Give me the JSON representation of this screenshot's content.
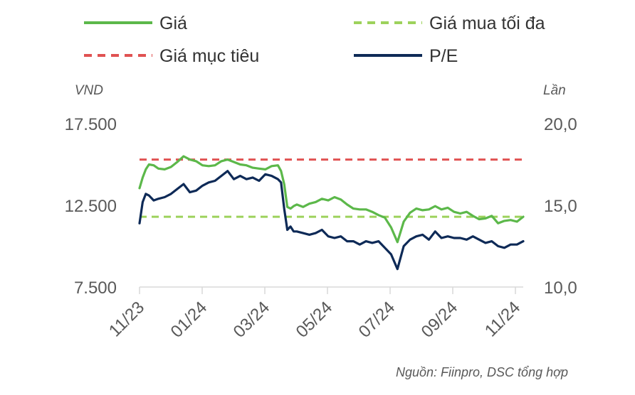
{
  "chart_data": {
    "type": "line",
    "legend": {
      "placement": "top",
      "items": [
        {
          "name": "Giá",
          "color": "#5cb84a",
          "dash": "solid"
        },
        {
          "name": "Giá mua tối đa",
          "color": "#9dd25c",
          "dash": "dashed"
        },
        {
          "name": "Giá mục tiêu",
          "color": "#e05252",
          "dash": "dashed"
        },
        {
          "name": "P/E",
          "color": "#0e2a57",
          "dash": "solid"
        }
      ]
    },
    "left_axis": {
      "unit": "VND",
      "ticks": [
        "17.500",
        "12.500",
        "7.500"
      ],
      "tick_values": [
        17500,
        12500,
        7500
      ],
      "range": [
        7500,
        17500
      ]
    },
    "right_axis": {
      "unit": "Lần",
      "ticks": [
        "20,0",
        "15,0",
        "10,0"
      ],
      "tick_values": [
        20,
        15,
        10
      ],
      "range": [
        10,
        20
      ]
    },
    "x_axis": {
      "ticks": [
        "11/23",
        "01/24",
        "03/24",
        "05/24",
        "07/24",
        "09/24",
        "11/24"
      ],
      "range_months": [
        0,
        12.2
      ]
    },
    "reference_lines": {
      "target_price": 15300,
      "max_buy_price": 11800
    },
    "series": [
      {
        "name": "Giá",
        "axis": "left",
        "color": "#5cb84a",
        "x_months": [
          0,
          0.1,
          0.2,
          0.3,
          0.45,
          0.6,
          0.8,
          1.0,
          1.2,
          1.4,
          1.6,
          1.8,
          2.0,
          2.2,
          2.4,
          2.6,
          2.8,
          3.0,
          3.2,
          3.4,
          3.6,
          3.8,
          4.0,
          4.2,
          4.4,
          4.5,
          4.6,
          4.7,
          4.8,
          4.9,
          5.0,
          5.2,
          5.4,
          5.6,
          5.8,
          6.0,
          6.2,
          6.4,
          6.6,
          6.8,
          7.0,
          7.2,
          7.4,
          7.6,
          7.8,
          8.0,
          8.2,
          8.4,
          8.6,
          8.8,
          9.0,
          9.2,
          9.4,
          9.6,
          9.8,
          10.0,
          10.2,
          10.4,
          10.6,
          10.8,
          11.0,
          11.2,
          11.4,
          11.6,
          11.8,
          12.0,
          12.2
        ],
        "values": [
          13550,
          14200,
          14700,
          15000,
          14950,
          14750,
          14700,
          14850,
          15150,
          15500,
          15300,
          15200,
          14950,
          14900,
          14950,
          15200,
          15300,
          15150,
          15000,
          14950,
          14800,
          14750,
          14700,
          14900,
          14950,
          14600,
          13800,
          12400,
          12300,
          12450,
          12550,
          12400,
          12600,
          12700,
          12900,
          12800,
          13000,
          12850,
          12550,
          12300,
          12250,
          12250,
          12100,
          11900,
          11750,
          11150,
          10250,
          11500,
          12050,
          12300,
          12200,
          12250,
          12450,
          12250,
          12350,
          12100,
          12000,
          12100,
          11850,
          11650,
          11700,
          11850,
          11400,
          11550,
          11600,
          11500,
          11800
        ]
      },
      {
        "name": "P/E",
        "axis": "right",
        "color": "#0e2a57",
        "x_months": [
          0,
          0.1,
          0.2,
          0.3,
          0.45,
          0.6,
          0.8,
          1.0,
          1.2,
          1.4,
          1.6,
          1.8,
          2.0,
          2.2,
          2.4,
          2.6,
          2.8,
          3.0,
          3.2,
          3.4,
          3.6,
          3.8,
          4.0,
          4.2,
          4.4,
          4.5,
          4.6,
          4.7,
          4.8,
          4.9,
          5.0,
          5.2,
          5.4,
          5.6,
          5.8,
          6.0,
          6.2,
          6.4,
          6.6,
          6.8,
          7.0,
          7.2,
          7.4,
          7.6,
          7.8,
          8.0,
          8.2,
          8.4,
          8.6,
          8.8,
          9.0,
          9.2,
          9.4,
          9.6,
          9.8,
          10.0,
          10.2,
          10.4,
          10.6,
          10.8,
          11.0,
          11.2,
          11.4,
          11.6,
          11.8,
          12.0,
          12.2
        ],
        "values": [
          13.9,
          15.2,
          15.7,
          15.6,
          15.3,
          15.4,
          15.5,
          15.7,
          16.0,
          16.3,
          15.8,
          15.9,
          16.2,
          16.4,
          16.5,
          16.8,
          17.1,
          16.6,
          16.8,
          16.6,
          16.7,
          16.5,
          16.9,
          16.8,
          16.6,
          16.4,
          14.8,
          13.5,
          13.7,
          13.4,
          13.4,
          13.3,
          13.2,
          13.3,
          13.5,
          13.1,
          13.0,
          13.1,
          12.8,
          12.8,
          12.6,
          12.8,
          12.7,
          12.8,
          12.4,
          12.0,
          11.1,
          12.5,
          12.9,
          13.1,
          13.2,
          12.9,
          13.4,
          13.0,
          13.1,
          13.0,
          13.0,
          12.9,
          13.1,
          12.9,
          12.7,
          12.8,
          12.5,
          12.4,
          12.6,
          12.6,
          12.8
        ]
      }
    ]
  },
  "source_note": "Nguồn: Fiinpro, DSC tổng hợp"
}
